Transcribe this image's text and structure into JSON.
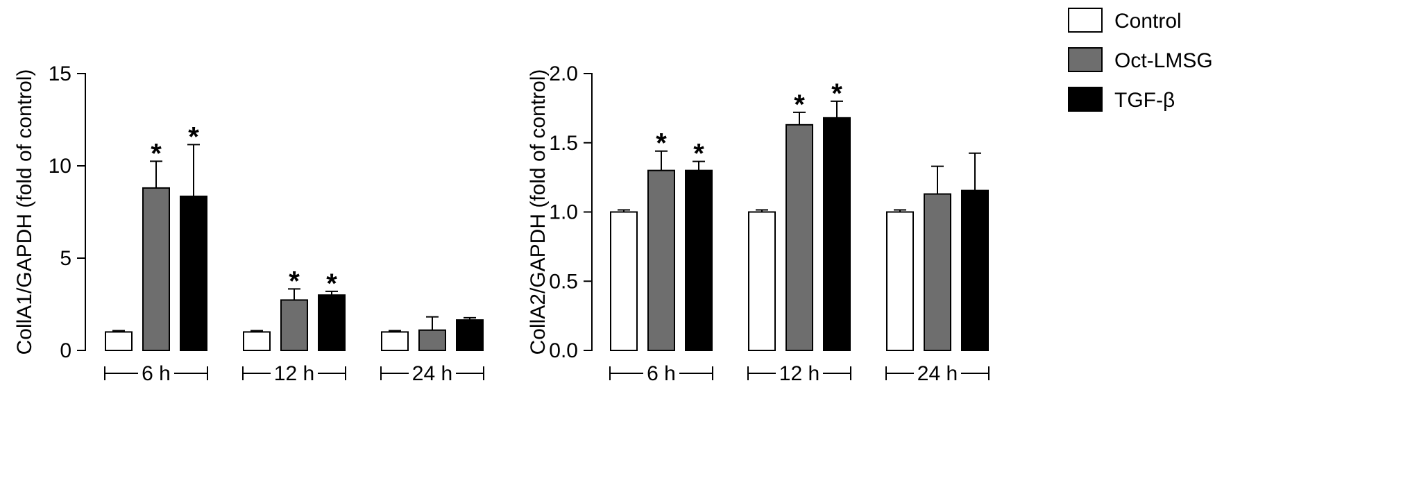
{
  "legend": [
    {
      "label": "Control",
      "color": "#ffffff"
    },
    {
      "label": "Oct-LMSG",
      "color": "#6e6e6e"
    },
    {
      "label": "TGF-β",
      "color": "#000000"
    }
  ],
  "chart_data": [
    {
      "type": "bar",
      "title": "",
      "xlabel": "",
      "ylabel": "CollA1/GAPDH (fold of control)",
      "ylim": [
        0,
        15
      ],
      "yticks": [
        0,
        5,
        10,
        15
      ],
      "ytick_labels": [
        "0",
        "5",
        "10",
        "15"
      ],
      "categories": [
        "6 h",
        "12 h",
        "24 h"
      ],
      "grid": false,
      "legend_position": "top-right",
      "series": [
        {
          "name": "Control",
          "values": [
            1.0,
            1.0,
            1.0
          ],
          "errors": [
            0.07,
            0.07,
            0.07
          ],
          "significant": [
            false,
            false,
            false
          ]
        },
        {
          "name": "Oct-LMSG",
          "values": [
            8.8,
            2.73,
            1.1
          ],
          "errors": [
            1.45,
            0.6,
            0.72
          ],
          "significant": [
            true,
            true,
            false
          ]
        },
        {
          "name": "TGF-β",
          "values": [
            8.35,
            3.0,
            1.65
          ],
          "errors": [
            2.8,
            0.2,
            0.12
          ],
          "significant": [
            true,
            true,
            false
          ]
        }
      ],
      "significance_marker": "*"
    },
    {
      "type": "bar",
      "title": "",
      "xlabel": "",
      "ylabel": "CollA2/GAPDH (fold of control)",
      "ylim": [
        0,
        2.0
      ],
      "yticks": [
        0,
        0.5,
        1.0,
        1.5,
        2.0
      ],
      "ytick_labels": [
        "0.0",
        "0.5",
        "1.0",
        "1.5",
        "2.0"
      ],
      "categories": [
        "6 h",
        "12 h",
        "24 h"
      ],
      "grid": false,
      "legend_position": "top-right",
      "series": [
        {
          "name": "Control",
          "values": [
            1.0,
            1.0,
            1.0
          ],
          "errors": [
            0.015,
            0.015,
            0.015
          ],
          "significant": [
            false,
            false,
            false
          ]
        },
        {
          "name": "Oct-LMSG",
          "values": [
            1.3,
            1.63,
            1.13
          ],
          "errors": [
            0.14,
            0.09,
            0.2
          ],
          "significant": [
            true,
            true,
            false
          ]
        },
        {
          "name": "TGF-β",
          "values": [
            1.3,
            1.68,
            1.155
          ],
          "errors": [
            0.065,
            0.12,
            0.27
          ],
          "significant": [
            true,
            true,
            false
          ]
        }
      ],
      "significance_marker": "*"
    }
  ]
}
